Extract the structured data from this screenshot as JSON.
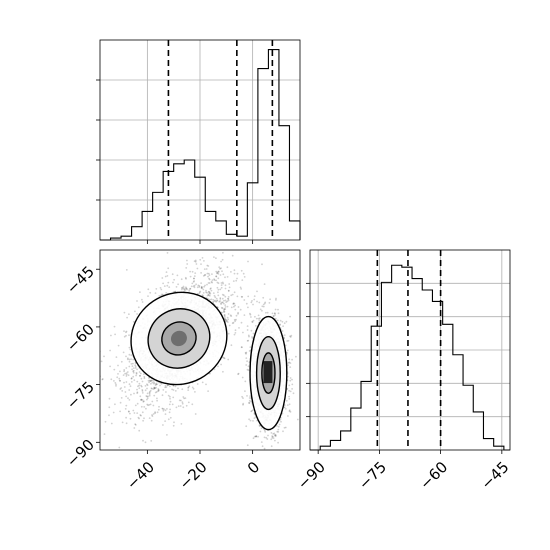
{
  "chart_data": [
    {
      "type": "histogram",
      "panel": "top-left",
      "variable": "x",
      "xlim": [
        -58,
        18
      ],
      "x_ticks": [
        -40,
        -20,
        0
      ],
      "tick_labels_shown": false,
      "y_ticks_count": 4,
      "grid": true,
      "bins": [
        {
          "x0": -58,
          "x1": -54,
          "h": 0.0
        },
        {
          "x0": -54,
          "x1": -50,
          "h": 0.01
        },
        {
          "x0": -50,
          "x1": -46,
          "h": 0.02
        },
        {
          "x0": -46,
          "x1": -42,
          "h": 0.07
        },
        {
          "x0": -42,
          "x1": -38,
          "h": 0.15
        },
        {
          "x0": -38,
          "x1": -34,
          "h": 0.25
        },
        {
          "x0": -34,
          "x1": -30,
          "h": 0.36
        },
        {
          "x0": -30,
          "x1": -26,
          "h": 0.4
        },
        {
          "x0": -26,
          "x1": -22,
          "h": 0.42
        },
        {
          "x0": -22,
          "x1": -18,
          "h": 0.33
        },
        {
          "x0": -18,
          "x1": -14,
          "h": 0.15
        },
        {
          "x0": -14,
          "x1": -10,
          "h": 0.1
        },
        {
          "x0": -10,
          "x1": -6,
          "h": 0.03
        },
        {
          "x0": -6,
          "x1": -2,
          "h": 0.02
        },
        {
          "x0": -2,
          "x1": 2,
          "h": 0.3
        },
        {
          "x0": 2,
          "x1": 6,
          "h": 0.9
        },
        {
          "x0": 6,
          "x1": 10,
          "h": 1.0
        },
        {
          "x0": 10,
          "x1": 14,
          "h": 0.6
        },
        {
          "x0": 14,
          "x1": 18,
          "h": 0.1
        }
      ],
      "quantiles": [
        -32,
        -6,
        7.5
      ]
    },
    {
      "type": "scatter",
      "subtype": "2d-density-contour",
      "panel": "bottom-left",
      "xlim": [
        -58,
        18
      ],
      "ylim": [
        -92,
        -40
      ],
      "x_ticks": [
        -40,
        -20,
        0
      ],
      "x_tick_labels": [
        "−40",
        "−20",
        "0"
      ],
      "y_ticks": [
        -45,
        -60,
        -75,
        -90
      ],
      "y_tick_labels": [
        "−45",
        "−60",
        "−75",
        "−90"
      ],
      "clusters": [
        {
          "cx": -28,
          "cy": -63,
          "sx": 10,
          "sy": 8.5,
          "rho": 0.5,
          "n": 2600
        },
        {
          "cx": 6,
          "cy": -72,
          "sx": 3.5,
          "sy": 7,
          "rho": 0.0,
          "n": 1700
        }
      ],
      "contour_levels": [
        "outer",
        "middle",
        "inner"
      ]
    },
    {
      "type": "histogram",
      "panel": "bottom-right",
      "variable": "y",
      "xlim": [
        -92,
        -43
      ],
      "x_ticks": [
        -90,
        -75,
        -60,
        -45
      ],
      "x_tick_labels": [
        "−90",
        "−75",
        "−60",
        "−45"
      ],
      "y_ticks_count": 5,
      "grid": true,
      "bins": [
        {
          "x0": -92,
          "x1": -89.5,
          "h": 0.0
        },
        {
          "x0": -89.5,
          "x1": -87,
          "h": 0.02
        },
        {
          "x0": -87,
          "x1": -84.5,
          "h": 0.05
        },
        {
          "x0": -84.5,
          "x1": -82,
          "h": 0.1
        },
        {
          "x0": -82,
          "x1": -79.5,
          "h": 0.22
        },
        {
          "x0": -79.5,
          "x1": -77,
          "h": 0.36
        },
        {
          "x0": -77,
          "x1": -74.5,
          "h": 0.65
        },
        {
          "x0": -74.5,
          "x1": -72,
          "h": 0.88
        },
        {
          "x0": -72,
          "x1": -69.5,
          "h": 0.97
        },
        {
          "x0": -69.5,
          "x1": -67,
          "h": 0.96
        },
        {
          "x0": -67,
          "x1": -64.5,
          "h": 0.9
        },
        {
          "x0": -64.5,
          "x1": -62,
          "h": 0.84
        },
        {
          "x0": -62,
          "x1": -59.5,
          "h": 0.78
        },
        {
          "x0": -59.5,
          "x1": -57,
          "h": 0.66
        },
        {
          "x0": -57,
          "x1": -54.5,
          "h": 0.5
        },
        {
          "x0": -54.5,
          "x1": -52,
          "h": 0.34
        },
        {
          "x0": -52,
          "x1": -49.5,
          "h": 0.2
        },
        {
          "x0": -49.5,
          "x1": -47,
          "h": 0.06
        },
        {
          "x0": -47,
          "x1": -44.5,
          "h": 0.02
        },
        {
          "x0": -44.5,
          "x1": -43,
          "h": 0.0
        }
      ],
      "quantiles": [
        -75.5,
        -68,
        -60
      ]
    }
  ]
}
